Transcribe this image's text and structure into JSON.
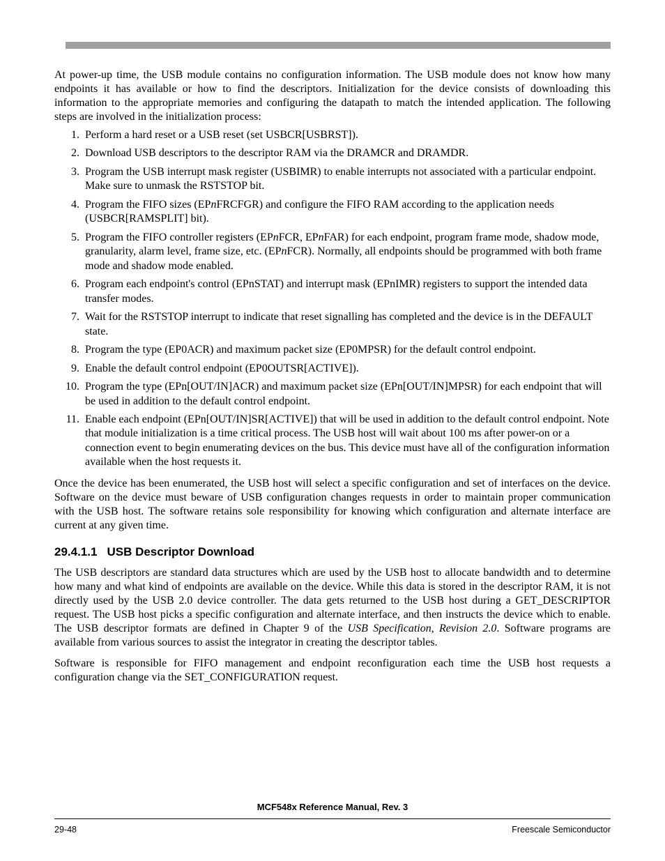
{
  "colors": {
    "top_rule": "#a0a0a0",
    "text": "#000000",
    "background": "#ffffff"
  },
  "typography": {
    "body_family": "Times New Roman",
    "body_size_pt": 12,
    "heading_family": "Arial",
    "heading_size_pt": 13,
    "footer_size_pt": 9
  },
  "intro": "At power-up time, the USB module contains no configuration information. The USB module does not know how many endpoints it has available or how to find the descriptors. Initialization for the device consists of downloading this information to the appropriate memories and configuring the datapath to match the intended application. The following steps are involved in the initialization process:",
  "steps": [
    "Perform a hard reset or a USB reset (set USBCR[USBRST]).",
    "Download USB descriptors to the descriptor RAM via the DRAMCR and DRAMDR.",
    "Program the USB interrupt mask register (USBIMR) to enable interrupts not associated with a particular endpoint. Make sure to unmask the RSTSTOP bit.",
    "Program the FIFO sizes (EP<i>n</i>FRCFGR) and configure the FIFO RAM according to the application needs (USBCR[RAMSPLIT] bit).",
    "Program the FIFO controller registers (EP<i>n</i>FCR, EP<i>n</i>FAR) for each endpoint, program frame mode, shadow mode, granularity, alarm level, frame size, etc. (EP<i>n</i>FCR). Normally, all endpoints should be programmed with both frame mode and shadow mode enabled.",
    "Program each endpoint's control (EPnSTAT) and interrupt mask (EPnIMR) registers to support the intended data transfer modes.",
    "Wait for the RSTSTOP interrupt to indicate that reset signalling has completed and the device is in the DEFAULT state.",
    "Program the type (EP0ACR) and maximum packet size (EP0MPSR) for the default control endpoint.",
    "Enable the default control endpoint (EP0OUTSR[ACTIVE]).",
    "Program the type (EPn[OUT/IN]ACR) and maximum packet size (EPn[OUT/IN]MPSR) for each endpoint that will be used in addition to the default control endpoint.",
    "Enable each endpoint (EPn[OUT/IN]SR[ACTIVE]) that will be used in addition to the default control endpoint. Note that module initialization is a time critical process. The USB host will wait about 100 ms after power-on or a connection event to begin enumerating devices on the bus. This device must have all of the configuration information available when the host requests it."
  ],
  "outro": "Once the device has been enumerated, the USB host will select a specific configuration and set of interfaces on the device. Software on the device must beware of USB configuration changes requests in order to maintain proper communication with the USB host. The software retains sole responsibility for knowing which configuration and alternate interface are current at any given time.",
  "section": {
    "number": "29.4.1.1",
    "title": "USB Descriptor Download",
    "para1": "The USB descriptors are standard data structures which are used by the USB host to allocate bandwidth and to determine how many and what kind of endpoints are available on the device. While this data is stored in the descriptor RAM, it is not directly used by the USB 2.0 device controller. The data gets returned to the USB host during a GET_DESCRIPTOR request. The USB host picks a specific configuration and alternate interface, and then instructs the device which to enable. The USB descriptor formats are defined in Chapter 9 of the <i>USB Specification, Revision 2.0</i>. Software programs are available from various sources to assist the integrator in creating the descriptor tables.",
    "para2": "Software is responsible for FIFO management and endpoint reconfiguration each time the USB host requests a configuration change via the SET_CONFIGURATION request."
  },
  "footer": {
    "title": "MCF548x Reference Manual, Rev. 3",
    "page": "29-48",
    "company": "Freescale Semiconductor"
  }
}
